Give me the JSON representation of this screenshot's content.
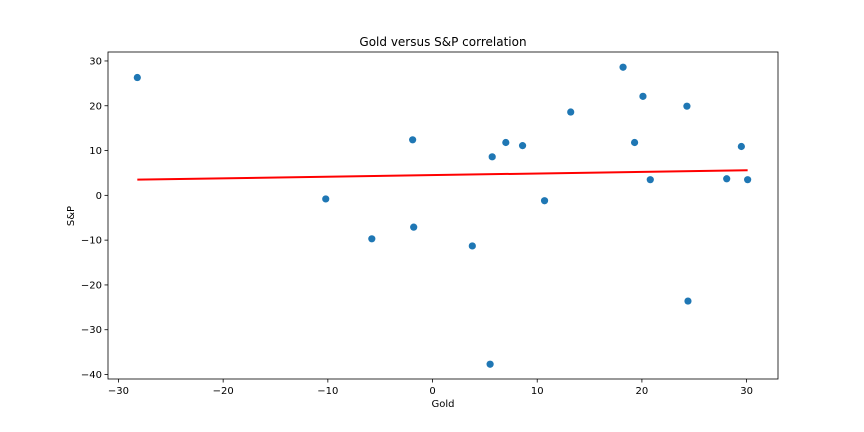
{
  "chart_data": {
    "type": "scatter",
    "title": "Gold versus S&P correlation",
    "xlabel": "Gold",
    "ylabel": "S&P",
    "xlim": [
      -31,
      33
    ],
    "ylim": [
      -41,
      32
    ],
    "xticks": [
      -30,
      -20,
      -10,
      0,
      10,
      20,
      30
    ],
    "yticks": [
      -40,
      -30,
      -20,
      -10,
      0,
      10,
      20,
      30
    ],
    "grid": false,
    "colors": {
      "points": "#1f77b4",
      "fit_line": "#ff0000"
    },
    "series": [
      {
        "x": [
          -28.2,
          -10.2,
          -5.8,
          -1.9,
          -1.8,
          3.8,
          5.5,
          5.7,
          7.0,
          8.6,
          10.7,
          13.2,
          18.2,
          19.3,
          20.1,
          20.8,
          24.3,
          24.4,
          28.1,
          29.5,
          30.1
        ],
        "y": [
          26.3,
          -0.8,
          -9.7,
          12.4,
          -7.1,
          -11.3,
          -37.7,
          8.6,
          11.8,
          11.1,
          -1.2,
          18.6,
          28.6,
          11.8,
          22.1,
          3.5,
          19.9,
          -23.6,
          3.7,
          10.9,
          3.5
        ]
      }
    ],
    "fit_line": {
      "x": [
        -28.2,
        30.1
      ],
      "y": [
        3.5,
        5.6
      ]
    }
  }
}
